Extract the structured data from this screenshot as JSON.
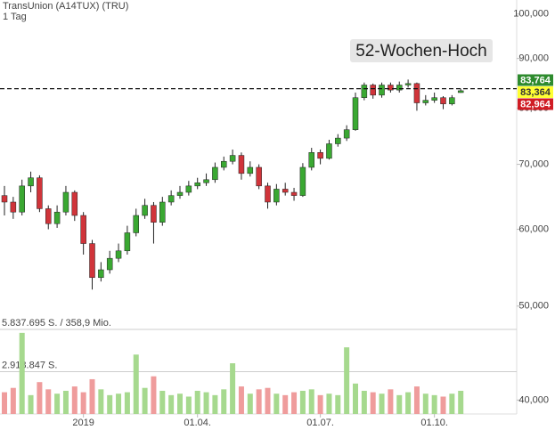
{
  "chart_data": {
    "type": "candlestick",
    "title": "TransUnion (A14TUX) (TRU)",
    "subtitle": "1 Tag",
    "log_scale": true,
    "up_color": "#3aa832",
    "down_color": "#d0343a",
    "ylim": [
      38700,
      103400
    ],
    "yticks": [
      {
        "value": 40000,
        "label": "40,000"
      },
      {
        "value": 50000,
        "label": "50,000"
      },
      {
        "value": 60000,
        "label": "60,000"
      },
      {
        "value": 70000,
        "label": "70,000"
      },
      {
        "value": 80000,
        "label": "80,000"
      },
      {
        "value": 90000,
        "label": "90,000"
      },
      {
        "value": 100000,
        "label": "100,000"
      }
    ],
    "categories": [
      null,
      null,
      null,
      null,
      null,
      null,
      null,
      null,
      null,
      "2019",
      null,
      null,
      null,
      null,
      null,
      null,
      null,
      null,
      null,
      null,
      null,
      null,
      "01.04.",
      null,
      null,
      null,
      null,
      null,
      null,
      null,
      null,
      null,
      null,
      null,
      null,
      null,
      "01.07.",
      null,
      null,
      null,
      null,
      null,
      null,
      null,
      null,
      null,
      null,
      null,
      null,
      "01.10.",
      null,
      null,
      null
    ],
    "open": [
      65000,
      64000,
      62500,
      66500,
      67800,
      63000,
      60800,
      62500,
      65500,
      62000,
      58000,
      53500,
      54500,
      56000,
      57000,
      59500,
      62000,
      63500,
      61000,
      64000,
      65000,
      65500,
      66500,
      67000,
      67500,
      69500,
      70500,
      71500,
      68500,
      69500,
      66500,
      64000,
      66000,
      65500,
      65000,
      69500,
      72000,
      71000,
      73500,
      74500,
      76000,
      82000,
      84500,
      82500,
      84500,
      83500,
      84500,
      84800,
      81000,
      81500,
      82000,
      80800,
      83000
    ],
    "high": [
      66500,
      64800,
      67500,
      68800,
      68200,
      63500,
      63500,
      66500,
      65800,
      62500,
      58500,
      55500,
      57000,
      58000,
      60500,
      63000,
      64500,
      64000,
      64800,
      65800,
      66500,
      67300,
      67800,
      68500,
      70300,
      71300,
      72500,
      72000,
      70500,
      70000,
      67000,
      66800,
      67000,
      66200,
      70200,
      72800,
      72500,
      74200,
      75200,
      76800,
      83000,
      85000,
      84800,
      85000,
      85000,
      85200,
      85600,
      85000,
      82500,
      83000,
      82300,
      82500,
      83764
    ],
    "low": [
      62000,
      61500,
      62000,
      65500,
      62500,
      60000,
      60200,
      62000,
      61200,
      56500,
      52000,
      53000,
      54000,
      55500,
      56500,
      59000,
      61500,
      58000,
      60500,
      63500,
      64500,
      65000,
      66000,
      66500,
      67000,
      69000,
      70000,
      67500,
      68000,
      66000,
      63000,
      63500,
      65000,
      64200,
      64800,
      69000,
      70000,
      70800,
      73000,
      74000,
      75800,
      81500,
      81800,
      82000,
      83000,
      83000,
      84000,
      79500,
      80500,
      81000,
      79800,
      80500,
      82964
    ],
    "close": [
      64000,
      62500,
      66500,
      67800,
      63000,
      60800,
      62500,
      65500,
      62000,
      58000,
      53500,
      54500,
      56000,
      57000,
      59500,
      62000,
      63500,
      61000,
      64000,
      65000,
      65500,
      66500,
      67000,
      67500,
      69500,
      70500,
      71500,
      68500,
      69500,
      66500,
      64000,
      66000,
      65500,
      65000,
      69500,
      72000,
      71000,
      73500,
      74500,
      76000,
      82000,
      84500,
      82500,
      84500,
      83500,
      84500,
      84800,
      81000,
      81500,
      82000,
      80800,
      82000,
      83364
    ],
    "high_line": {
      "value": 83764,
      "label": "52-Wochen-Hoch"
    },
    "last_labels": [
      {
        "value": 83764,
        "label": "83,764",
        "color": "#2e8b2e"
      },
      {
        "value": 83364,
        "label": "83,364",
        "color": "#ffff33"
      },
      {
        "value": 82964,
        "label": "82,964",
        "color": "#d01c24"
      }
    ],
    "volume": {
      "ylim": [
        0,
        5837695
      ],
      "yticks": [
        {
          "value": 2918847,
          "label": "2.918.847 S."
        },
        {
          "value": 5837695,
          "label": "5.837.695 S. / 358,9 Mio."
        }
      ],
      "up_color": "#a6d98e",
      "down_color": "#ef9c9c",
      "values": [
        1500000,
        1800000,
        5600000,
        1300000,
        2200000,
        1700000,
        1400000,
        1600000,
        1900000,
        1500000,
        2400000,
        1700000,
        1300000,
        1400000,
        1500000,
        4100000,
        1800000,
        2600000,
        1600000,
        1300000,
        1400000,
        1200000,
        1600000,
        1500000,
        1300000,
        1700000,
        3500000,
        1900000,
        1400000,
        1700000,
        1800000,
        1400000,
        1300000,
        1500000,
        1600000,
        1700000,
        1300000,
        1400000,
        1300000,
        4600000,
        2100000,
        1600000,
        1500000,
        1400000,
        1700000,
        1300000,
        1500000,
        1900000,
        1400000,
        1300000,
        1200000,
        1400000,
        1600000
      ]
    }
  }
}
